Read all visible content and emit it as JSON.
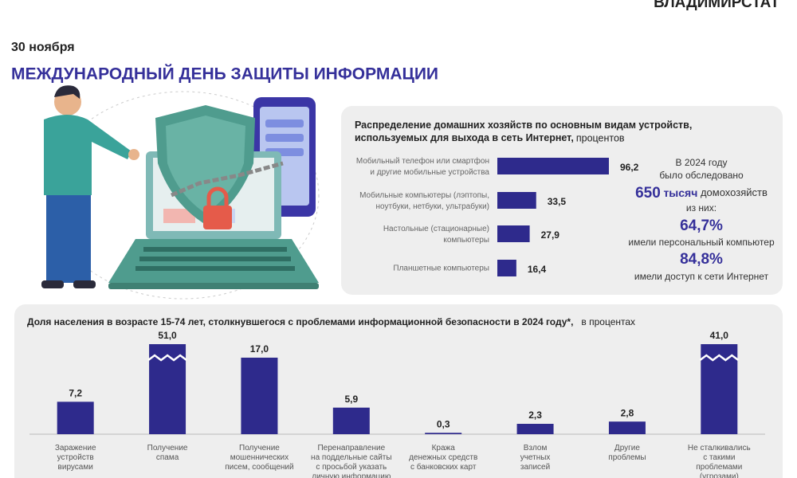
{
  "header": {
    "brand": "ВЛАДИМИРСТАТ",
    "date": "30 ноября",
    "title": "МЕЖДУНАРОДНЫЙ ДЕНЬ ЗАЩИТЫ ИНФОРМАЦИИ"
  },
  "survey": {
    "intro": "В 2024 году\nбыло обследовано",
    "count": "650",
    "count_unit": "тысяч",
    "count_rest": "домохозяйств",
    "subset": "из них:",
    "stat1": "64,7%",
    "stat1_label": "имели персональный компьютер",
    "stat2": "84,8%",
    "stat2_label": "имели доступ к сети Интернет"
  },
  "chart_data": [
    {
      "type": "bar",
      "orientation": "horizontal",
      "title": "Распределение домашних хозяйств по основным видам устройств,\nиспользуемых для выхода в сеть Интернет,",
      "unit": "процентов",
      "categories": [
        "Мобильный телефон или смартфон\nи другие мобильные устройства",
        "Мобильные компьютеры (лэптопы,\nноутбуки, нетбуки, ультрабуки)",
        "Настольные (стационарные)\nкомпьютеры",
        "Планшетные компьютеры"
      ],
      "values": [
        96.2,
        33.5,
        27.9,
        16.4
      ],
      "value_labels": [
        "96,2",
        "33,5",
        "27,9",
        "16,4"
      ],
      "color": "#2e2a8c",
      "xlim": [
        0,
        100
      ]
    },
    {
      "type": "bar",
      "orientation": "vertical",
      "title": "Доля населения в возрасте 15-74 лет, столкнувшегося с проблемами информационной безопасности в 2024 году*,",
      "unit": "в процентах",
      "categories": [
        "Заражение\nустройств\nвирусами",
        "Получение\nспама",
        "Получение\nмошеннических\nписем, сообщений",
        "Перенаправление\nна поддельные сайты\nс просьбой указать\nличную информацию",
        "Кража\nденежных средств\nс банковских карт",
        "Взлом\nучетных\nзаписей",
        "Другие\nпроблемы",
        "Не сталкивались\nс такими\nпроблемами\n(угрозами)"
      ],
      "values": [
        7.2,
        51.0,
        17.0,
        5.9,
        0.3,
        2.3,
        2.8,
        41.0
      ],
      "value_labels": [
        "7,2",
        "51,0",
        "17,0",
        "5,9",
        "0,3",
        "2,3",
        "2,8",
        "41,0"
      ],
      "color": "#2e2a8c",
      "ylim": [
        0,
        20
      ]
    }
  ]
}
